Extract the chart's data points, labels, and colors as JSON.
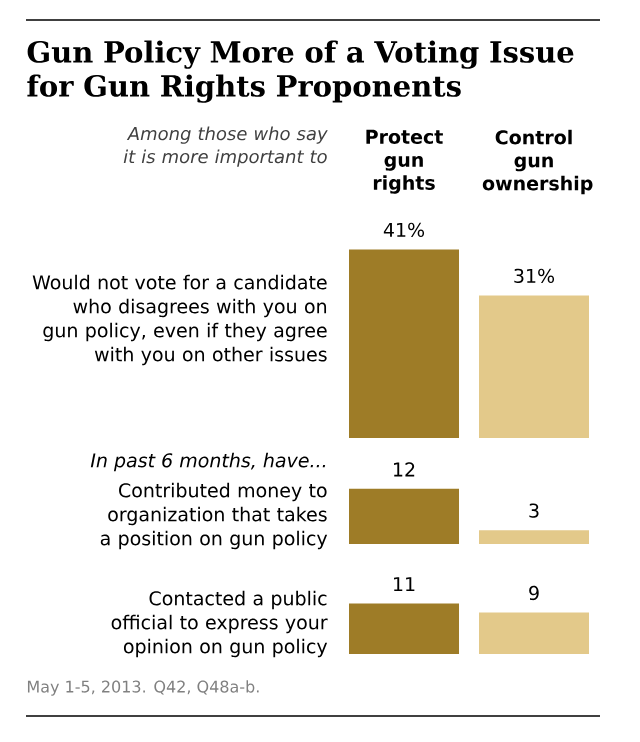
{
  "chart_data": [
    {
      "type": "bar",
      "title": "Gun Policy More of a Voting Issue for Gun Rights Proponents",
      "annotations": [
        "Among those who say it is more important to"
      ],
      "ylabel": "Would not vote for a candidate who disagrees with you on gun policy, even if they agree with you on other issues",
      "categories": [
        "Protect gun rights",
        "Control gun ownership"
      ],
      "values": [
        41,
        31
      ],
      "value_labels": [
        "41%",
        "31%"
      ],
      "colors": [
        "#9e7c27",
        "#e3c98a"
      ],
      "tick_labels": "x"
    },
    {
      "type": "bar",
      "subtitle": "In past 6 months, have...",
      "ylabel": "Contributed money to organization that takes a position on gun policy",
      "categories": [
        null,
        null
      ],
      "values": [
        12,
        3
      ],
      "value_labels": [
        "12",
        "3"
      ],
      "colors": [
        "#9e7c27",
        "#e3c98a"
      ],
      "tick_labels": false
    },
    {
      "type": "bar",
      "ylabel": "Contacted a public official to express your opinion on gun policy",
      "categories": [
        null,
        null
      ],
      "values": [
        11,
        9
      ],
      "value_labels": [
        "11",
        "9"
      ],
      "colors": [
        "#9e7c27",
        "#e3c98a"
      ],
      "tick_labels": false,
      "annotations": [
        "May 1-5, 2013. Q42, Q48a-b."
      ]
    }
  ]
}
